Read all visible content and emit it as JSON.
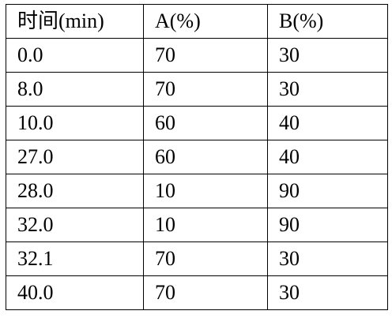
{
  "table": {
    "headers": [
      "时间(min)",
      "A(%)",
      "B(%)"
    ],
    "rows": [
      [
        "0.0",
        "70",
        "30"
      ],
      [
        "8.0",
        "70",
        "30"
      ],
      [
        "10.0",
        "60",
        "40"
      ],
      [
        "27.0",
        "60",
        "40"
      ],
      [
        "28.0",
        "10",
        "90"
      ],
      [
        "32.0",
        "10",
        "90"
      ],
      [
        "32.1",
        "70",
        "30"
      ],
      [
        "40.0",
        "70",
        "30"
      ]
    ]
  }
}
